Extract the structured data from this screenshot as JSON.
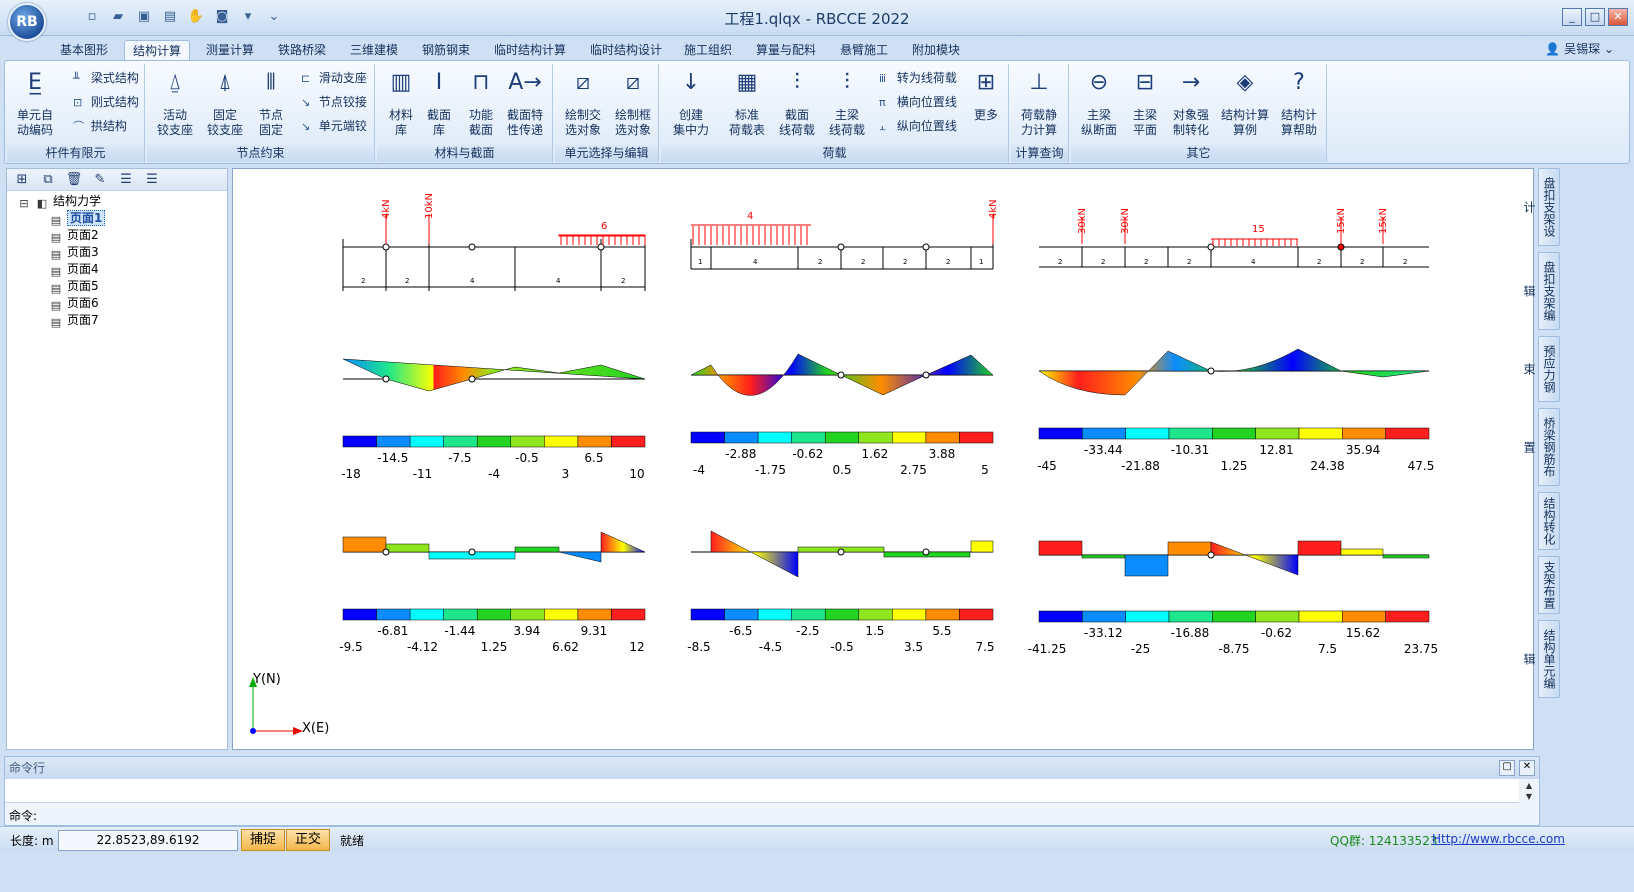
{
  "app": {
    "logo": "RB",
    "title": "工程1.qlqx - RBCCE 2022",
    "user": "吴锡琛"
  },
  "qat": [
    "new-icon",
    "open-icon",
    "save-icon",
    "saveas-icon",
    "hand-icon",
    "view-icon",
    "dropdown-icon",
    "customize-icon"
  ],
  "tabs": [
    "基本图形",
    "结构计算",
    "测量计算",
    "铁路桥梁",
    "三维建模",
    "钢筋钢束",
    "临时结构计算",
    "临时结构设计",
    "施工组织",
    "算量与配料",
    "悬臂施工",
    "附加模块"
  ],
  "ribbon": {
    "groups": [
      "杆件有限元",
      "节点约束",
      "材料与截面",
      "单元选择与编辑",
      "荷载",
      "计算查询",
      "其它"
    ],
    "g1": {
      "big": "单元自\n动编码",
      "small": [
        "梁式结构",
        "刚式结构",
        "拱结构"
      ]
    },
    "g2": {
      "big": [
        "活动\n铰支座",
        "固定\n铰支座",
        "节点\n固定"
      ],
      "small": [
        "滑动支座",
        "节点铰接",
        "单元端铰"
      ]
    },
    "g3": {
      "big": [
        "材料\n库",
        "截面\n库",
        "功能\n截面",
        "截面特\n性传递"
      ]
    },
    "g4": {
      "big": [
        "绘制交\n选对象",
        "绘制框\n选对象"
      ]
    },
    "g5": {
      "big": [
        "创建\n集中力",
        "标准\n荷载表",
        "截面\n线荷载",
        "主梁\n线荷载"
      ],
      "small": [
        "转为线荷载",
        "横向位置线",
        "纵向位置线"
      ],
      "more": "更多"
    },
    "g6": {
      "big": [
        "荷载静\n力计算"
      ]
    },
    "g7": {
      "big": [
        "主梁\n纵断面",
        "主梁\n平面",
        "对象强\n制转化",
        "结构计算\n算例",
        "结构计\n算帮助"
      ]
    }
  },
  "tree": {
    "root": "结构力学",
    "pages": [
      "页面1",
      "页面2",
      "页面3",
      "页面4",
      "页面5",
      "页面6",
      "页面7"
    ],
    "selected": "页面1"
  },
  "right_tabs": [
    "盘扣支架设计",
    "盘扣支架编辑",
    "预应力钢束",
    "桥梁钢筋布置",
    "结构转化",
    "支架布置",
    "结构单元编辑"
  ],
  "diagrams": {
    "b1": {
      "loads": [
        "4kN",
        "10kN"
      ],
      "dist": "6",
      "spans": [
        "2",
        "2",
        "4",
        "4",
        "2"
      ]
    },
    "b2": {
      "dist": "4",
      "loads": [
        "4kN"
      ],
      "spans": [
        "1",
        "4",
        "2",
        "2",
        "2",
        "2",
        "1"
      ]
    },
    "b3": {
      "loads": [
        "30kN",
        "30kN",
        "15kN",
        "15kN"
      ],
      "dist": "15",
      "spans": [
        "2",
        "2",
        "2",
        "2",
        "4",
        "2",
        "2",
        "2"
      ]
    },
    "legend_colors": [
      "#0000ff",
      "#0a8cff",
      "#00ffff",
      "#1ee68c",
      "#22d322",
      "#90e61e",
      "#ffff00",
      "#ff8c00",
      "#ff1e1e"
    ],
    "m1": {
      "mid": [
        "-14.5",
        "-7.5",
        "-0.5",
        "6.5"
      ],
      "ends": [
        "-18",
        "-11",
        "-4",
        "3",
        "10"
      ]
    },
    "m2": {
      "mid": [
        "-2.88",
        "-0.62",
        "1.62",
        "3.88"
      ],
      "ends": [
        "-4",
        "-1.75",
        "0.5",
        "2.75",
        "5"
      ]
    },
    "m3": {
      "mid": [
        "-33.44",
        "-10.31",
        "12.81",
        "35.94"
      ],
      "ends": [
        "-45",
        "-21.88",
        "1.25",
        "24.38",
        "47.5"
      ]
    },
    "v1": {
      "mid": [
        "-6.81",
        "-1.44",
        "3.94",
        "9.31"
      ],
      "ends": [
        "-9.5",
        "-4.12",
        "1.25",
        "6.62",
        "12"
      ]
    },
    "v2": {
      "mid": [
        "-6.5",
        "-2.5",
        "1.5",
        "5.5"
      ],
      "ends": [
        "-8.5",
        "-4.5",
        "-0.5",
        "3.5",
        "7.5"
      ]
    },
    "v3": {
      "mid": [
        "-33.12",
        "-16.88",
        "-0.62",
        "15.62"
      ],
      "ends": [
        "-41.25",
        "-25",
        "-8.75",
        "7.5",
        "23.75"
      ]
    },
    "axis": {
      "y": "Y(N)",
      "x": "X(E)"
    }
  },
  "cmd": {
    "header": "命令行",
    "prompt": "命令:"
  },
  "status": {
    "len_label": "长度: m",
    "coords": "22.8523,89.6192",
    "snap": "捕捉",
    "ortho": "正交",
    "ready": "就绪",
    "qq_label": "QQ群: ",
    "qq": "124133523",
    "url": "Http://www.rbcce.com"
  }
}
